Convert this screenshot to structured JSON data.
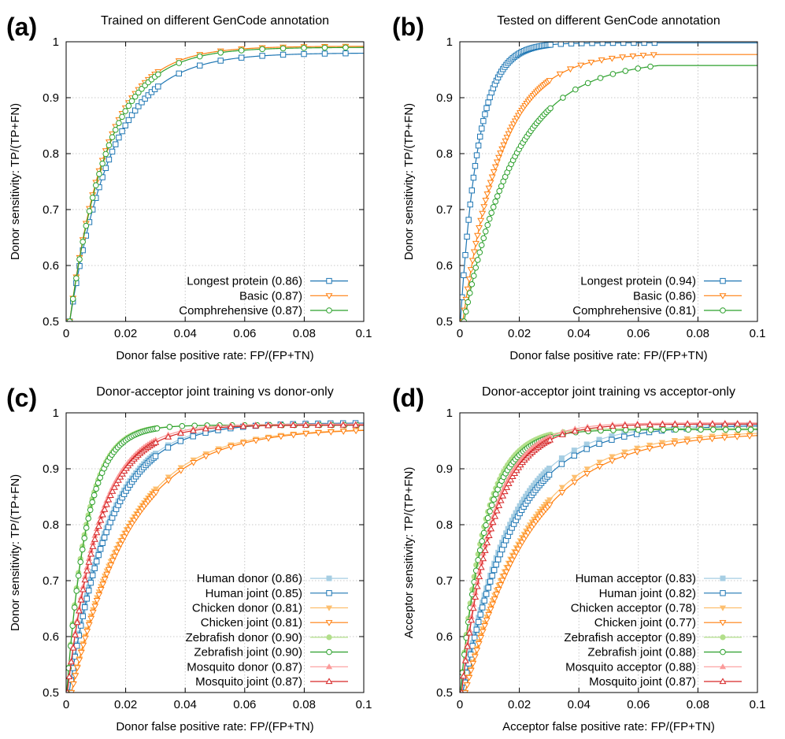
{
  "chart_data": [
    {
      "id": "a",
      "type": "line",
      "panel_label": "(a)",
      "title": "Trained on different GenCode annotation",
      "xlabel": "Donor false positive rate: FP/(FP+TN)",
      "ylabel": "Donor sensitivity: TP/(TP+FN)",
      "xlim": [
        0,
        0.1
      ],
      "ylim": [
        0.5,
        1
      ],
      "xticks": [
        "0",
        "0.02",
        "0.04",
        "0.06",
        "0.08",
        "0.1"
      ],
      "yticks": [
        "0.5",
        "0.6",
        "0.7",
        "0.8",
        "0.9",
        "1"
      ],
      "grid": true,
      "legend_position": "bottom-right",
      "series": [
        {
          "name": "Longest protein (0.86)",
          "color": "#1f77b4",
          "marker": "square",
          "open": true,
          "x0": 0.0012,
          "y0": 0.5,
          "ymax": 0.98,
          "k": 70,
          "xend": 0.1,
          "step": 0.002
        },
        {
          "name": "Basic (0.87)",
          "color": "#ff7f0e",
          "marker": "triangle-down",
          "open": true,
          "x0": 0.0012,
          "y0": 0.5,
          "ymax": 0.992,
          "k": 80,
          "xend": 0.1,
          "step": 0.002
        },
        {
          "name": "Comphrehensive (0.87)",
          "color": "#2ca02c",
          "marker": "circle",
          "open": true,
          "x0": 0.0012,
          "y0": 0.5,
          "ymax": 0.99,
          "k": 78,
          "xend": 0.1,
          "step": 0.002
        }
      ]
    },
    {
      "id": "b",
      "type": "line",
      "panel_label": "(b)",
      "title": "Tested on different GenCode annotation",
      "xlabel": "Donor false positive rate: FP/(FP+TN)",
      "ylabel": "Donor sensitivity: TP/(TP+FN)",
      "xlim": [
        0,
        0.1
      ],
      "ylim": [
        0.5,
        1
      ],
      "xticks": [
        "0",
        "0.02",
        "0.04",
        "0.06",
        "0.08",
        "0.1"
      ],
      "yticks": [
        "0.5",
        "0.6",
        "0.7",
        "0.8",
        "0.9",
        "1"
      ],
      "grid": true,
      "legend_position": "bottom-right",
      "series": [
        {
          "name": "Longest protein (0.94)",
          "color": "#1f77b4",
          "marker": "square",
          "open": true,
          "x0": 0.0002,
          "y0": 0.5,
          "ymax": 0.998,
          "k": 165,
          "xend": 0.067,
          "xcap": 0.1,
          "step": 0.001
        },
        {
          "name": "Basic (0.86)",
          "color": "#ff7f0e",
          "marker": "triangle-down",
          "open": true,
          "x0": 0.001,
          "y0": 0.5,
          "ymax": 0.98,
          "k": 78,
          "xend": 0.067,
          "xcap": 0.1,
          "step": 0.001
        },
        {
          "name": "Comphrehensive (0.81)",
          "color": "#2ca02c",
          "marker": "circle",
          "open": true,
          "x0": 0.0014,
          "y0": 0.5,
          "ymax": 0.968,
          "k": 58,
          "xend": 0.067,
          "xcap": 0.1,
          "step": 0.0012
        }
      ]
    },
    {
      "id": "c",
      "type": "line",
      "panel_label": "(c)",
      "title": "Donor-acceptor joint training vs donor-only",
      "xlabel": "Donor false positive rate: FP/(FP+TN)",
      "ylabel": "Donor sensitivity: TP/(TP+FN)",
      "xlim": [
        0,
        0.1
      ],
      "ylim": [
        0.5,
        1
      ],
      "xticks": [
        "0",
        "0.02",
        "0.04",
        "0.06",
        "0.08",
        "0.1"
      ],
      "yticks": [
        "0.5",
        "0.6",
        "0.7",
        "0.8",
        "0.9",
        "1"
      ],
      "grid": true,
      "legend_position": "bottom-right",
      "series": [
        {
          "name": "Human donor (0.86)",
          "color": "#a6cee3",
          "marker": "square",
          "open": false,
          "x0": 0.001,
          "y0": 0.5,
          "ymax": 0.982,
          "k": 75,
          "xend": 0.1,
          "step": 0.0012
        },
        {
          "name": "Human joint (0.85)",
          "color": "#1f77b4",
          "marker": "square",
          "open": true,
          "x0": 0.001,
          "y0": 0.5,
          "ymax": 0.982,
          "k": 72,
          "xend": 0.1,
          "step": 0.0012
        },
        {
          "name": "Chicken donor (0.81)",
          "color": "#fdbf6f",
          "marker": "triangle-down",
          "open": false,
          "x0": 0.0018,
          "y0": 0.5,
          "ymax": 0.972,
          "k": 52,
          "xend": 0.1,
          "step": 0.0012
        },
        {
          "name": "Chicken joint (0.81)",
          "color": "#ff7f0e",
          "marker": "triangle-down",
          "open": true,
          "x0": 0.0018,
          "y0": 0.5,
          "ymax": 0.972,
          "k": 50,
          "xend": 0.1,
          "step": 0.0012
        },
        {
          "name": "Zebrafish donor (0.90)",
          "color": "#b2df8a",
          "marker": "circle",
          "open": false,
          "x0": 0.0002,
          "y0": 0.5,
          "ymax": 0.978,
          "k": 150,
          "xend": 0.1,
          "step": 0.0012
        },
        {
          "name": "Zebrafish joint (0.90)",
          "color": "#2ca02c",
          "marker": "circle",
          "open": true,
          "x0": 0.0002,
          "y0": 0.5,
          "ymax": 0.978,
          "k": 145,
          "xend": 0.1,
          "step": 0.0012
        },
        {
          "name": "Mosquito donor (0.87)",
          "color": "#fb9a99",
          "marker": "triangle-up",
          "open": false,
          "x0": 0.0004,
          "y0": 0.5,
          "ymax": 0.98,
          "k": 95,
          "xend": 0.1,
          "step": 0.0012
        },
        {
          "name": "Mosquito joint (0.87)",
          "color": "#d62728",
          "marker": "triangle-up",
          "open": true,
          "x0": 0.0004,
          "y0": 0.5,
          "ymax": 0.978,
          "k": 92,
          "xend": 0.1,
          "step": 0.0012
        }
      ]
    },
    {
      "id": "d",
      "type": "line",
      "panel_label": "(d)",
      "title": "Donor-acceptor joint training vs acceptor-only",
      "xlabel": "Acceptor false positive rate: FP/(FP+TN)",
      "ylabel": "Acceptor sensitivity: TP/(TP+FN)",
      "xlim": [
        0,
        0.1
      ],
      "ylim": [
        0.5,
        1
      ],
      "xticks": [
        "0",
        "0.02",
        "0.04",
        "0.06",
        "0.08",
        "0.1"
      ],
      "yticks": [
        "0.5",
        "0.6",
        "0.7",
        "0.8",
        "0.9",
        "1"
      ],
      "grid": true,
      "legend_position": "bottom-right",
      "series": [
        {
          "name": "Human acceptor (0.83)",
          "color": "#a6cee3",
          "marker": "square",
          "open": false,
          "x0": 0.001,
          "y0": 0.5,
          "ymax": 0.98,
          "k": 62,
          "xend": 0.1,
          "step": 0.0012
        },
        {
          "name": "Human joint (0.82)",
          "color": "#1f77b4",
          "marker": "square",
          "open": true,
          "x0": 0.001,
          "y0": 0.5,
          "ymax": 0.978,
          "k": 58,
          "xend": 0.1,
          "step": 0.0012
        },
        {
          "name": "Chicken acceptor (0.78)",
          "color": "#fdbf6f",
          "marker": "triangle-down",
          "open": false,
          "x0": 0.0018,
          "y0": 0.5,
          "ymax": 0.968,
          "k": 47,
          "xend": 0.1,
          "step": 0.0012
        },
        {
          "name": "Chicken joint (0.77)",
          "color": "#ff7f0e",
          "marker": "triangle-down",
          "open": true,
          "x0": 0.0018,
          "y0": 0.5,
          "ymax": 0.965,
          "k": 45,
          "xend": 0.1,
          "step": 0.0012
        },
        {
          "name": "Zebrafish acceptor (0.89)",
          "color": "#b2df8a",
          "marker": "circle",
          "open": false,
          "x0": 0.0002,
          "y0": 0.5,
          "ymax": 0.972,
          "k": 125,
          "xend": 0.1,
          "step": 0.0012
        },
        {
          "name": "Zebrafish joint (0.88)",
          "color": "#2ca02c",
          "marker": "circle",
          "open": true,
          "x0": 0.0002,
          "y0": 0.5,
          "ymax": 0.97,
          "k": 118,
          "xend": 0.1,
          "step": 0.0012
        },
        {
          "name": "Mosquito acceptor (0.88)",
          "color": "#fb9a99",
          "marker": "triangle-up",
          "open": false,
          "x0": 0.0006,
          "y0": 0.5,
          "ymax": 0.982,
          "k": 100,
          "xend": 0.1,
          "step": 0.0012
        },
        {
          "name": "Mosquito joint (0.87)",
          "color": "#d62728",
          "marker": "triangle-up",
          "open": true,
          "x0": 0.0006,
          "y0": 0.5,
          "ymax": 0.98,
          "k": 95,
          "xend": 0.1,
          "step": 0.0012
        }
      ]
    }
  ]
}
